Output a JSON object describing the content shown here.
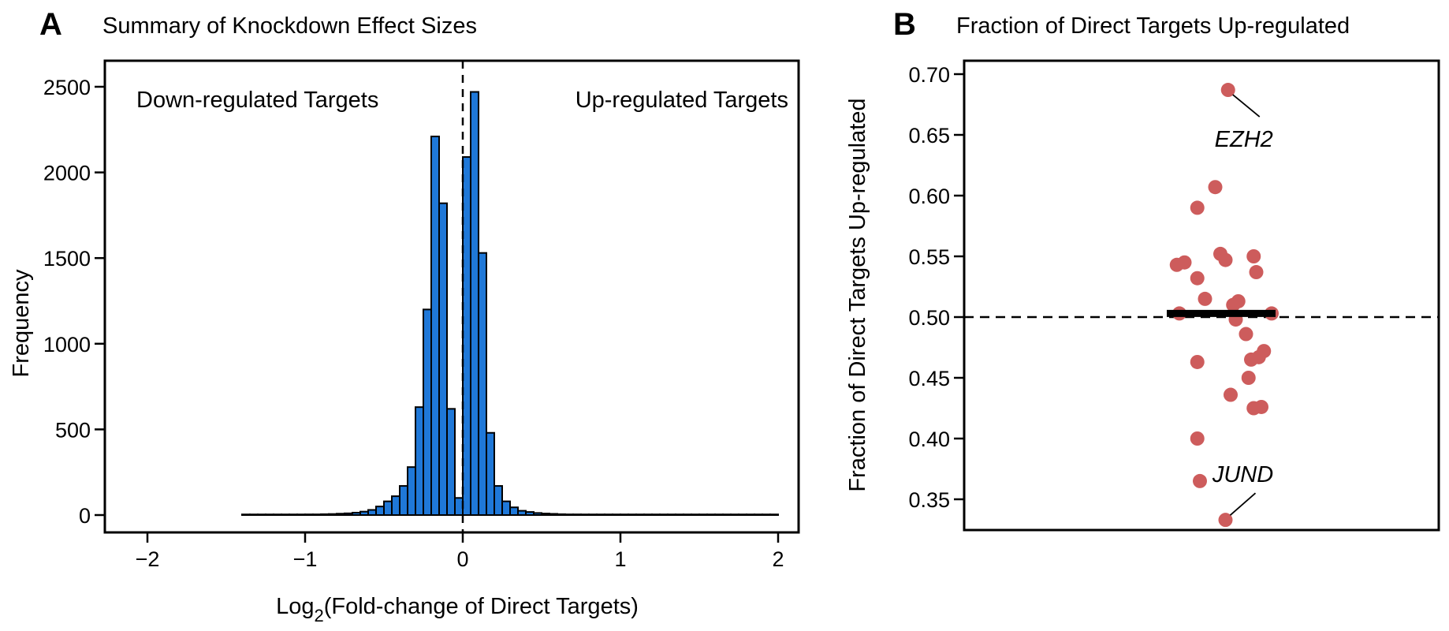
{
  "chart_data": [
    {
      "panel_label": "A",
      "type": "bar",
      "title": "Summary of Knockdown Effect Sizes",
      "xlabel": "(Fold-change of Direct Targets)",
      "xlabel_prefix": "Log",
      "xlabel_subscript": "2",
      "ylabel": "Frequency",
      "xlim": [
        -2.2,
        2.2
      ],
      "ylim": [
        0,
        2500
      ],
      "x_ticks": [
        -2,
        -1,
        0,
        1,
        2
      ],
      "x_tick_labels": [
        "−2",
        "−1",
        "0",
        "1",
        "2"
      ],
      "y_ticks": [
        0,
        500,
        1000,
        1500,
        2000,
        2500
      ],
      "y_tick_labels": [
        "0",
        "500",
        "1000",
        "1500",
        "2000",
        "2500"
      ],
      "bin_width": 0.05,
      "bins_start": [
        -1.4,
        -1.35,
        -1.3,
        -1.25,
        -1.2,
        -1.15,
        -1.1,
        -1.05,
        -1.0,
        -0.95,
        -0.9,
        -0.85,
        -0.8,
        -0.75,
        -0.7,
        -0.65,
        -0.6,
        -0.55,
        -0.5,
        -0.45,
        -0.4,
        -0.35,
        -0.3,
        -0.25,
        -0.2,
        -0.15,
        -0.1,
        -0.05,
        0.0,
        0.05,
        0.1,
        0.15,
        0.2,
        0.25,
        0.3,
        0.35,
        0.4,
        0.45,
        0.5,
        0.55,
        0.6,
        0.65,
        0.7,
        0.75,
        0.8,
        0.85,
        0.9,
        0.95,
        1.0,
        1.05,
        1.1,
        1.15,
        1.2,
        1.25,
        1.3,
        1.35,
        1.4,
        1.45,
        1.5,
        1.55,
        1.6,
        1.65,
        1.7,
        1.75,
        1.8,
        1.85,
        1.9,
        1.95
      ],
      "values": [
        2,
        1,
        1,
        2,
        2,
        2,
        3,
        3,
        4,
        4,
        5,
        6,
        8,
        10,
        14,
        20,
        30,
        50,
        80,
        110,
        170,
        280,
        630,
        1200,
        2210,
        1820,
        620,
        100,
        2090,
        2470,
        1530,
        480,
        170,
        80,
        45,
        25,
        18,
        12,
        9,
        7,
        5,
        4,
        4,
        3,
        3,
        2,
        2,
        2,
        2,
        2,
        1,
        1,
        1,
        1,
        1,
        1,
        1,
        1,
        1,
        1,
        1,
        1,
        1,
        1,
        1,
        1,
        1,
        1
      ],
      "color": "#1f78d8",
      "reference_line_x": 0,
      "annotations": [
        "Down-regulated Targets",
        "Up-regulated Targets"
      ]
    },
    {
      "panel_label": "B",
      "type": "scatter",
      "title": "Fraction of Direct Targets Up-regulated",
      "xlabel": "",
      "ylabel": "Fraction of Direct Targets Up-regulated",
      "ylim": [
        0.32,
        0.71
      ],
      "y_ticks": [
        0.35,
        0.4,
        0.45,
        0.5,
        0.55,
        0.6,
        0.65,
        0.7
      ],
      "y_tick_labels": [
        "0.35",
        "0.40",
        "0.45",
        "0.50",
        "0.55",
        "0.60",
        "0.65",
        "0.70"
      ],
      "jitter_range": [
        -1,
        1
      ],
      "points": [
        {
          "x": 0.15,
          "y": 0.687,
          "label": "EZH2"
        },
        {
          "x": -0.1,
          "y": 0.607
        },
        {
          "x": -0.45,
          "y": 0.59
        },
        {
          "x": -0.85,
          "y": 0.543
        },
        {
          "x": -0.7,
          "y": 0.545
        },
        {
          "x": -0.45,
          "y": 0.532
        },
        {
          "x": 0.0,
          "y": 0.552
        },
        {
          "x": 0.1,
          "y": 0.547
        },
        {
          "x": 0.65,
          "y": 0.55
        },
        {
          "x": 0.7,
          "y": 0.537
        },
        {
          "x": -0.3,
          "y": 0.515
        },
        {
          "x": 0.35,
          "y": 0.513
        },
        {
          "x": 0.25,
          "y": 0.51
        },
        {
          "x": -0.8,
          "y": 0.503
        },
        {
          "x": 1.0,
          "y": 0.503
        },
        {
          "x": 0.3,
          "y": 0.498
        },
        {
          "x": 0.5,
          "y": 0.486
        },
        {
          "x": 0.85,
          "y": 0.472
        },
        {
          "x": 0.6,
          "y": 0.465
        },
        {
          "x": 0.75,
          "y": 0.467
        },
        {
          "x": -0.45,
          "y": 0.463
        },
        {
          "x": 0.55,
          "y": 0.45
        },
        {
          "x": 0.2,
          "y": 0.436
        },
        {
          "x": 0.65,
          "y": 0.425
        },
        {
          "x": 0.8,
          "y": 0.426
        },
        {
          "x": -0.45,
          "y": 0.4
        },
        {
          "x": -0.4,
          "y": 0.365
        },
        {
          "x": 0.1,
          "y": 0.333,
          "label": "JUND"
        }
      ],
      "median": 0.503,
      "reference_line_y": 0.5,
      "point_color": "#cd5c5c"
    }
  ]
}
